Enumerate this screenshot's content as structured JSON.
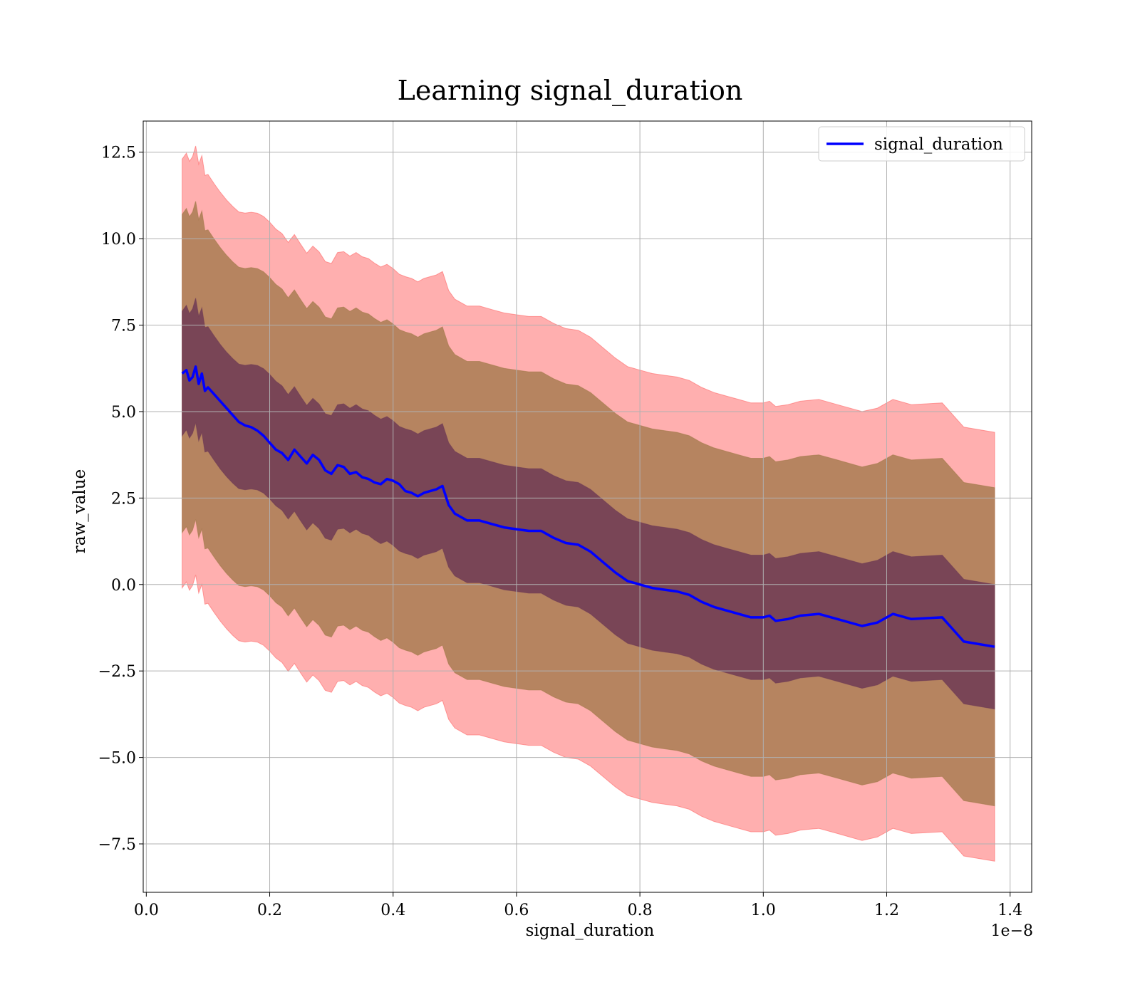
{
  "chart_data": {
    "type": "line",
    "title": "Learning signal_duration",
    "xlabel": "signal_duration",
    "ylabel": "raw_value",
    "x_offset_label": "1e−8",
    "x_scale": 1e-08,
    "xlim": [
      -0.005,
      1.435
    ],
    "ylim": [
      -8.9,
      13.4
    ],
    "x_ticks": [
      0.0,
      0.2,
      0.4,
      0.6,
      0.8,
      1.0,
      1.2,
      1.4
    ],
    "x_tick_labels": [
      "0.0",
      "0.2",
      "0.4",
      "0.6",
      "0.8",
      "1.0",
      "1.2",
      "1.4"
    ],
    "y_ticks": [
      -7.5,
      -5.0,
      -2.5,
      0.0,
      2.5,
      5.0,
      7.5,
      10.0,
      12.5
    ],
    "y_tick_labels": [
      "−7.5",
      "−5.0",
      "−2.5",
      "0.0",
      "2.5",
      "5.0",
      "7.5",
      "10.0",
      "12.5"
    ],
    "grid": true,
    "legend": {
      "position": "top-right",
      "entries": [
        "signal_duration"
      ]
    },
    "colors": {
      "line": "#0000ff",
      "band_outer": "#ff6666",
      "band_middle": "#a1794a",
      "band_inner": "#6e3a55"
    },
    "band_half_widths": {
      "inner": 1.8,
      "middle": 4.6,
      "outer": 6.2
    },
    "series": [
      {
        "name": "signal_duration",
        "x": [
          0.058,
          0.065,
          0.07,
          0.075,
          0.08,
          0.085,
          0.09,
          0.095,
          0.1,
          0.11,
          0.12,
          0.13,
          0.14,
          0.15,
          0.16,
          0.17,
          0.18,
          0.19,
          0.2,
          0.21,
          0.22,
          0.23,
          0.24,
          0.25,
          0.26,
          0.27,
          0.28,
          0.29,
          0.3,
          0.31,
          0.32,
          0.33,
          0.34,
          0.35,
          0.36,
          0.37,
          0.38,
          0.39,
          0.4,
          0.41,
          0.42,
          0.43,
          0.44,
          0.45,
          0.46,
          0.47,
          0.48,
          0.49,
          0.5,
          0.52,
          0.54,
          0.56,
          0.58,
          0.6,
          0.62,
          0.64,
          0.66,
          0.68,
          0.7,
          0.72,
          0.74,
          0.76,
          0.78,
          0.8,
          0.82,
          0.84,
          0.86,
          0.88,
          0.9,
          0.92,
          0.94,
          0.96,
          0.98,
          1.0,
          1.01,
          1.02,
          1.04,
          1.06,
          1.09,
          1.12,
          1.16,
          1.185,
          1.21,
          1.24,
          1.29,
          1.325,
          1.375
        ],
        "y": [
          6.1,
          6.2,
          5.9,
          6.0,
          6.3,
          5.8,
          6.1,
          5.6,
          5.7,
          5.5,
          5.3,
          5.1,
          4.9,
          4.7,
          4.6,
          4.55,
          4.45,
          4.3,
          4.1,
          3.9,
          3.8,
          3.6,
          3.9,
          3.7,
          3.5,
          3.75,
          3.6,
          3.3,
          3.2,
          3.45,
          3.4,
          3.2,
          3.25,
          3.1,
          3.05,
          2.95,
          2.9,
          3.05,
          3.0,
          2.9,
          2.7,
          2.65,
          2.55,
          2.65,
          2.7,
          2.75,
          2.85,
          2.3,
          2.05,
          1.85,
          1.85,
          1.75,
          1.65,
          1.6,
          1.55,
          1.55,
          1.35,
          1.2,
          1.15,
          0.95,
          0.65,
          0.35,
          0.1,
          0.0,
          -0.1,
          -0.15,
          -0.2,
          -0.3,
          -0.5,
          -0.65,
          -0.75,
          -0.85,
          -0.95,
          -0.95,
          -0.9,
          -1.05,
          -1.0,
          -0.9,
          -0.85,
          -1.0,
          -1.2,
          -1.1,
          -0.85,
          -1.0,
          -0.95,
          -1.65,
          -1.8
        ]
      }
    ]
  }
}
